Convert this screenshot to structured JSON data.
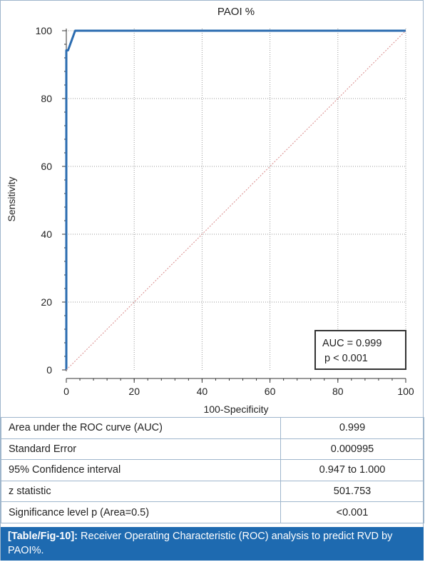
{
  "chart_data": {
    "type": "line",
    "title": "PAOI %",
    "xlabel": "100-Specificity",
    "ylabel": "Sensitivity",
    "xlim": [
      0,
      100
    ],
    "ylim": [
      0,
      100
    ],
    "x_ticks": [
      "0",
      "20",
      "40",
      "60",
      "80",
      "100"
    ],
    "y_ticks": [
      "0",
      "20",
      "40",
      "60",
      "80",
      "100"
    ],
    "grid": true,
    "series": [
      {
        "role": "roc",
        "color": "#2b6cb0",
        "points": [
          [
            0,
            0
          ],
          [
            0,
            94.2
          ],
          [
            0.5,
            94.2
          ],
          [
            2.6,
            100
          ],
          [
            100,
            100
          ]
        ]
      },
      {
        "role": "reference",
        "color": "#d98a8a",
        "points": [
          [
            0,
            0
          ],
          [
            100,
            100
          ]
        ]
      }
    ],
    "annotation": {
      "line1": "AUC = 0.999",
      "line2": "p < 0.001",
      "placement": "bottom-right"
    }
  },
  "stats_table": [
    {
      "label": "Area under the ROC curve (AUC)",
      "value": "0.999"
    },
    {
      "label": "Standard Error",
      "value": "0.000995"
    },
    {
      "label": "95% Confidence interval",
      "value": "0.947 to 1.000"
    },
    {
      "label": "z statistic",
      "value": "501.753"
    },
    {
      "label": "Significance level p (Area=0.5)",
      "value": "<0.001"
    }
  ],
  "caption": {
    "tag": "[Table/Fig-10]:",
    "text": " Receiver Operating Characteristic (ROC) analysis to predict RVD by PAOI%."
  }
}
